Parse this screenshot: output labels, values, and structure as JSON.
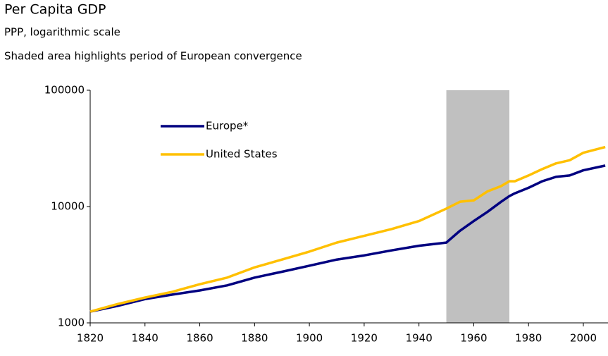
{
  "chart_data": {
    "type": "line",
    "title": "Per Capita GDP",
    "subtitle": "PPP, logarithmic scale",
    "annotation": "Shaded area highlights period of European convergence",
    "log_y": true,
    "shaded_region": [
      1950,
      1973
    ],
    "shade_color": "#c0c0c0",
    "legend": "upper left",
    "x": [
      1820,
      1830,
      1840,
      1850,
      1860,
      1870,
      1880,
      1890,
      1900,
      1910,
      1920,
      1930,
      1940,
      1950,
      1955,
      1960,
      1965,
      1970,
      1973,
      1975,
      1980,
      1985,
      1990,
      1995,
      2000,
      2008
    ],
    "series": [
      {
        "name": "Europe*",
        "color": "#000080",
        "values": [
          1250,
          1400,
          1600,
          1750,
          1900,
          2100,
          2450,
          2750,
          3100,
          3500,
          3800,
          4200,
          4600,
          4900,
          6200,
          7500,
          9000,
          11000,
          12300,
          13000,
          14500,
          16500,
          18000,
          18500,
          20500,
          22500
        ]
      },
      {
        "name": "United States",
        "color": "#ffc000",
        "values": [
          1250,
          1450,
          1650,
          1850,
          2150,
          2450,
          3000,
          3500,
          4100,
          4900,
          5600,
          6400,
          7500,
          9600,
          11000,
          11300,
          13500,
          15000,
          16500,
          16500,
          18500,
          21000,
          23500,
          25000,
          29000,
          32500
        ]
      }
    ],
    "xlim": [
      1820,
      2009
    ],
    "xticks": [
      1820,
      1840,
      1860,
      1880,
      1900,
      1920,
      1940,
      1960,
      1980,
      2000
    ],
    "ylim": [
      1000,
      100000
    ],
    "yticks": [
      1000,
      10000,
      100000
    ]
  }
}
